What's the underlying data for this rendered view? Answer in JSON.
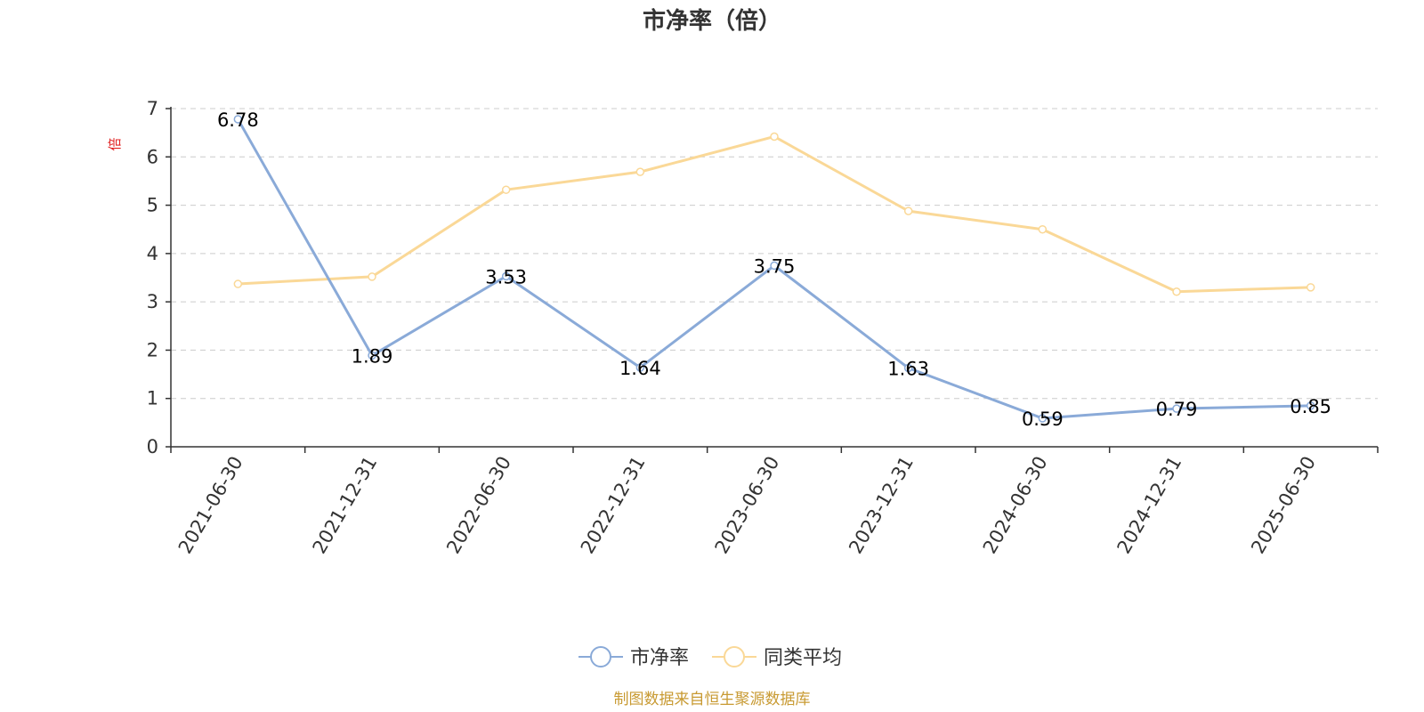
{
  "chart_data": {
    "type": "line",
    "title": "市净率（倍）",
    "ylabel": "倍",
    "xlabel": "",
    "categories": [
      "2021-06-30",
      "2021-12-31",
      "2022-06-30",
      "2022-12-31",
      "2023-06-30",
      "2023-12-31",
      "2024-06-30",
      "2024-12-31",
      "2025-06-30"
    ],
    "ylim": [
      0,
      7
    ],
    "yticks": [
      "0",
      "1",
      "2",
      "3",
      "4",
      "5",
      "6",
      "7"
    ],
    "grid": true,
    "legend_position": "bottom-center",
    "series": [
      {
        "name": "市净率",
        "color": "#8aaad8",
        "values": [
          6.78,
          1.89,
          3.53,
          1.64,
          3.75,
          1.63,
          0.59,
          0.79,
          0.85
        ],
        "data_labels": [
          "6.78",
          "1.89",
          "3.53",
          "1.64",
          "3.75",
          "1.63",
          "0.59",
          "0.79",
          "0.85"
        ]
      },
      {
        "name": "同类平均",
        "color": "#fad897",
        "values": [
          3.37,
          3.52,
          5.32,
          5.69,
          6.42,
          4.88,
          4.5,
          3.21,
          3.3
        ],
        "data_labels": []
      }
    ],
    "unit_color": "#e02020",
    "source": "制图数据来自恒生聚源数据库",
    "source_color": "#c89a32"
  }
}
